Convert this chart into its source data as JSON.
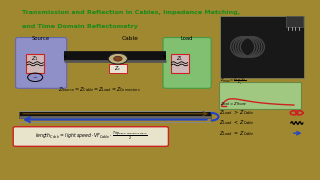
{
  "title_line1": "Transmission and Reflection in Cables, Impedance Matching,",
  "title_line2": "and Time Domain Reflectometry",
  "title_color": "#1a8a1a",
  "whiteboard_color": "#ddd8c0",
  "frame_color": "#a08830",
  "source_box_color": "#9090c8",
  "load_box_color": "#80c070",
  "cable_label": "Cable",
  "source_label": "Source",
  "load_label": "Load",
  "formula_box_color": "#e8e4cc",
  "formula_border": "#cc2222",
  "green_box_color": "#90c878",
  "cable_color": "#111111",
  "arrow_fwd_color": "#664400",
  "arrow_back_color": "#2244cc",
  "red_color": "#cc2222",
  "black": "#111111",
  "gray": "#888888"
}
